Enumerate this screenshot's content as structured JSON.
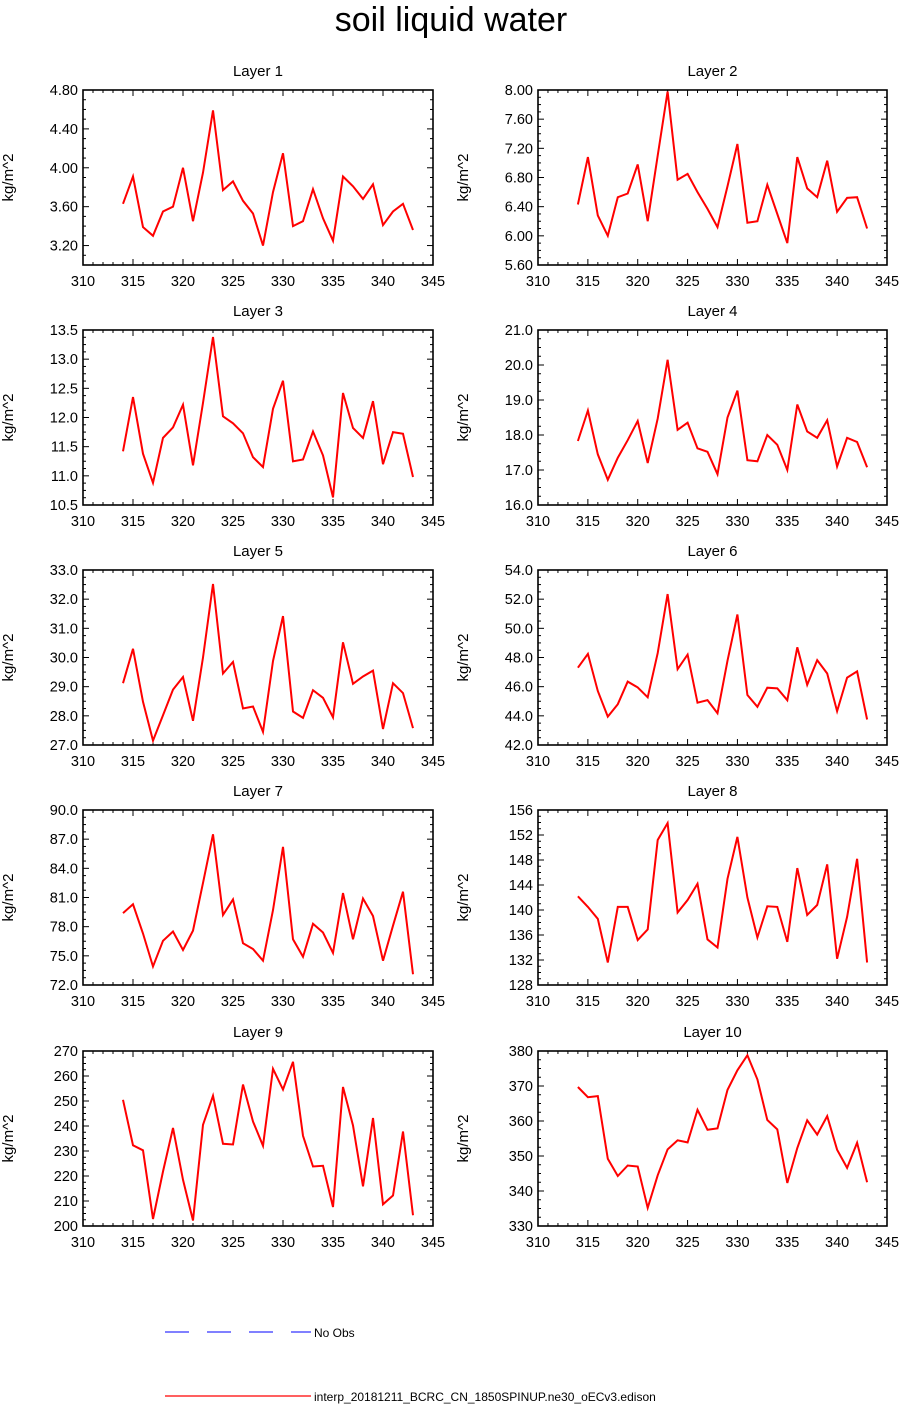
{
  "title": "soil liquid water",
  "legend": [
    {
      "label": "No Obs",
      "color": "#0000ff",
      "style": "dashed"
    },
    {
      "label": "interp_20181211_BCRC_CN_1850SPINUP.ne30_oECv3.edison",
      "color": "#ff0000",
      "style": "solid"
    }
  ],
  "chart_data": [
    {
      "type": "line",
      "title": "Layer 1",
      "ylabel": "kg/m^2",
      "xlim": [
        310,
        345
      ],
      "ylim": [
        3.0,
        4.8
      ],
      "xticks": [
        "310",
        "315",
        "320",
        "325",
        "330",
        "335",
        "340",
        "345"
      ],
      "yticks": [
        "3.20",
        "3.60",
        "4.00",
        "4.40",
        "4.80"
      ],
      "x": [
        314,
        315,
        316,
        317,
        318,
        319,
        320,
        321,
        322,
        323,
        324,
        325,
        326,
        327,
        328,
        329,
        330,
        331,
        332,
        333,
        334,
        335,
        336,
        337,
        338,
        339,
        340,
        341,
        342,
        343
      ],
      "series": [
        {
          "color": "#ff0000",
          "values": [
            3.63,
            3.91,
            3.39,
            3.3,
            3.55,
            3.6,
            4.0,
            3.45,
            3.95,
            4.59,
            3.77,
            3.86,
            3.66,
            3.53,
            3.2,
            3.75,
            4.15,
            3.4,
            3.45,
            3.78,
            3.48,
            3.25,
            3.91,
            3.81,
            3.68,
            3.83,
            3.41,
            3.55,
            3.63,
            3.36
          ]
        }
      ]
    },
    {
      "type": "line",
      "title": "Layer 2",
      "ylabel": "kg/m^2",
      "xlim": [
        310,
        345
      ],
      "ylim": [
        5.6,
        8.0
      ],
      "xticks": [
        "310",
        "315",
        "320",
        "325",
        "330",
        "335",
        "340",
        "345"
      ],
      "yticks": [
        "5.60",
        "6.00",
        "6.40",
        "6.80",
        "7.20",
        "7.60",
        "8.00"
      ],
      "x": [
        314,
        315,
        316,
        317,
        318,
        319,
        320,
        321,
        322,
        323,
        324,
        325,
        326,
        327,
        328,
        329,
        330,
        331,
        332,
        333,
        334,
        335,
        336,
        337,
        338,
        339,
        340,
        341,
        342,
        343
      ],
      "series": [
        {
          "color": "#ff0000",
          "values": [
            6.43,
            7.08,
            6.28,
            6.0,
            6.53,
            6.58,
            6.98,
            6.2,
            7.1,
            7.98,
            6.77,
            6.85,
            6.6,
            6.37,
            6.12,
            6.68,
            7.26,
            6.18,
            6.2,
            6.7,
            6.3,
            5.9,
            7.08,
            6.65,
            6.53,
            7.03,
            6.33,
            6.52,
            6.53,
            6.1
          ]
        }
      ]
    },
    {
      "type": "line",
      "title": "Layer 3",
      "ylabel": "kg/m^2",
      "xlim": [
        310,
        345
      ],
      "ylim": [
        10.5,
        13.5
      ],
      "xticks": [
        "310",
        "315",
        "320",
        "325",
        "330",
        "335",
        "340",
        "345"
      ],
      "yticks": [
        "10.5",
        "11.0",
        "11.5",
        "12.0",
        "12.5",
        "13.0",
        "13.5"
      ],
      "x": [
        314,
        315,
        316,
        317,
        318,
        319,
        320,
        321,
        322,
        323,
        324,
        325,
        326,
        327,
        328,
        329,
        330,
        331,
        332,
        333,
        334,
        335,
        336,
        337,
        338,
        339,
        340,
        341,
        342,
        343
      ],
      "series": [
        {
          "color": "#ff0000",
          "values": [
            11.42,
            12.35,
            11.38,
            10.88,
            11.65,
            11.83,
            12.22,
            11.18,
            12.25,
            13.38,
            12.02,
            11.9,
            11.73,
            11.32,
            11.15,
            12.15,
            12.63,
            11.25,
            11.28,
            11.76,
            11.35,
            10.63,
            12.42,
            11.82,
            11.65,
            12.28,
            11.2,
            11.75,
            11.72,
            10.98
          ]
        }
      ]
    },
    {
      "type": "line",
      "title": "Layer 4",
      "ylabel": "kg/m^2",
      "xlim": [
        310,
        345
      ],
      "ylim": [
        16.0,
        21.0
      ],
      "xticks": [
        "310",
        "315",
        "320",
        "325",
        "330",
        "335",
        "340",
        "345"
      ],
      "yticks": [
        "16.0",
        "17.0",
        "18.0",
        "19.0",
        "20.0",
        "21.0"
      ],
      "x": [
        314,
        315,
        316,
        317,
        318,
        319,
        320,
        321,
        322,
        323,
        324,
        325,
        326,
        327,
        328,
        329,
        330,
        331,
        332,
        333,
        334,
        335,
        336,
        337,
        338,
        339,
        340,
        341,
        342,
        343
      ],
      "series": [
        {
          "color": "#ff0000",
          "values": [
            17.83,
            18.7,
            17.45,
            16.72,
            17.35,
            17.85,
            18.4,
            17.2,
            18.47,
            20.15,
            18.15,
            18.35,
            17.62,
            17.52,
            16.88,
            18.5,
            19.27,
            17.28,
            17.25,
            18.0,
            17.72,
            17.0,
            18.87,
            18.1,
            17.92,
            18.42,
            17.1,
            17.92,
            17.8,
            17.08
          ]
        }
      ]
    },
    {
      "type": "line",
      "title": "Layer 5",
      "ylabel": "kg/m^2",
      "xlim": [
        310,
        345
      ],
      "ylim": [
        27.0,
        33.0
      ],
      "xticks": [
        "310",
        "315",
        "320",
        "325",
        "330",
        "335",
        "340",
        "345"
      ],
      "yticks": [
        "27.0",
        "28.0",
        "29.0",
        "30.0",
        "31.0",
        "32.0",
        "33.0"
      ],
      "x": [
        314,
        315,
        316,
        317,
        318,
        319,
        320,
        321,
        322,
        323,
        324,
        325,
        326,
        327,
        328,
        329,
        330,
        331,
        332,
        333,
        334,
        335,
        336,
        337,
        338,
        339,
        340,
        341,
        342,
        343
      ],
      "series": [
        {
          "color": "#ff0000",
          "values": [
            29.12,
            30.3,
            28.48,
            27.15,
            28.02,
            28.9,
            29.33,
            27.83,
            30.0,
            32.52,
            29.45,
            29.85,
            28.25,
            28.32,
            27.45,
            29.88,
            31.42,
            28.15,
            27.93,
            28.88,
            28.62,
            27.95,
            30.52,
            29.1,
            29.35,
            29.55,
            27.55,
            29.12,
            28.78,
            27.58
          ]
        }
      ]
    },
    {
      "type": "line",
      "title": "Layer 6",
      "ylabel": "kg/m^2",
      "xlim": [
        310,
        345
      ],
      "ylim": [
        42.0,
        54.0
      ],
      "xticks": [
        "310",
        "315",
        "320",
        "325",
        "330",
        "335",
        "340",
        "345"
      ],
      "yticks": [
        "42.0",
        "44.0",
        "46.0",
        "48.0",
        "50.0",
        "52.0",
        "54.0"
      ],
      "x": [
        314,
        315,
        316,
        317,
        318,
        319,
        320,
        321,
        322,
        323,
        324,
        325,
        326,
        327,
        328,
        329,
        330,
        331,
        332,
        333,
        334,
        335,
        336,
        337,
        338,
        339,
        340,
        341,
        342,
        343
      ],
      "series": [
        {
          "color": "#ff0000",
          "values": [
            47.3,
            48.25,
            45.7,
            43.95,
            44.8,
            46.35,
            45.95,
            45.27,
            48.3,
            52.35,
            47.2,
            48.2,
            44.9,
            45.08,
            44.18,
            47.78,
            50.95,
            45.43,
            44.62,
            45.93,
            45.88,
            45.07,
            48.7,
            46.13,
            47.82,
            46.9,
            44.32,
            46.62,
            47.05,
            43.75
          ]
        }
      ]
    },
    {
      "type": "line",
      "title": "Layer 7",
      "ylabel": "kg/m^2",
      "xlim": [
        310,
        345
      ],
      "ylim": [
        72.0,
        90.0
      ],
      "xticks": [
        "310",
        "315",
        "320",
        "325",
        "330",
        "335",
        "340",
        "345"
      ],
      "yticks": [
        "72.0",
        "75.0",
        "78.0",
        "81.0",
        "84.0",
        "87.0",
        "90.0"
      ],
      "x": [
        314,
        315,
        316,
        317,
        318,
        319,
        320,
        321,
        322,
        323,
        324,
        325,
        326,
        327,
        328,
        329,
        330,
        331,
        332,
        333,
        334,
        335,
        336,
        337,
        338,
        339,
        340,
        341,
        342,
        343
      ],
      "series": [
        {
          "color": "#ff0000",
          "values": [
            79.4,
            80.3,
            77.3,
            73.9,
            76.55,
            77.5,
            75.6,
            77.6,
            82.5,
            87.5,
            79.2,
            80.8,
            76.3,
            75.7,
            74.5,
            79.7,
            86.2,
            76.7,
            74.9,
            78.3,
            77.4,
            75.3,
            81.45,
            76.7,
            80.9,
            79.1,
            74.5,
            78.1,
            81.6,
            73.1
          ]
        }
      ]
    },
    {
      "type": "line",
      "title": "Layer 8",
      "ylabel": "kg/m^2",
      "xlim": [
        310,
        345
      ],
      "ylim": [
        128,
        156
      ],
      "xticks": [
        "310",
        "315",
        "320",
        "325",
        "330",
        "335",
        "340",
        "345"
      ],
      "yticks": [
        "128",
        "132",
        "136",
        "140",
        "144",
        "148",
        "152",
        "156"
      ],
      "x": [
        314,
        315,
        316,
        317,
        318,
        319,
        320,
        321,
        322,
        323,
        324,
        325,
        326,
        327,
        328,
        329,
        330,
        331,
        332,
        333,
        334,
        335,
        336,
        337,
        338,
        339,
        340,
        341,
        342,
        343
      ],
      "series": [
        {
          "color": "#ff0000",
          "values": [
            142.2,
            140.5,
            138.6,
            131.6,
            140.5,
            140.5,
            135.2,
            136.9,
            151.2,
            153.9,
            139.6,
            141.6,
            144.2,
            135.3,
            134.0,
            145.0,
            151.7,
            142.0,
            135.6,
            140.6,
            140.5,
            134.9,
            146.7,
            139.2,
            140.8,
            147.3,
            132.2,
            138.9,
            148.2,
            131.6
          ]
        }
      ]
    },
    {
      "type": "line",
      "title": "Layer 9",
      "ylabel": "kg/m^2",
      "xlim": [
        310,
        345
      ],
      "ylim": [
        200,
        270
      ],
      "xticks": [
        "310",
        "315",
        "320",
        "325",
        "330",
        "335",
        "340",
        "345"
      ],
      "yticks": [
        "200",
        "210",
        "220",
        "230",
        "240",
        "250",
        "260",
        "270"
      ],
      "x": [
        314,
        315,
        316,
        317,
        318,
        319,
        320,
        321,
        322,
        323,
        324,
        325,
        326,
        327,
        328,
        329,
        330,
        331,
        332,
        333,
        334,
        335,
        336,
        337,
        338,
        339,
        340,
        341,
        342,
        343
      ],
      "series": [
        {
          "color": "#ff0000",
          "values": [
            250.5,
            232.3,
            230.3,
            202.8,
            221.8,
            239.2,
            218.5,
            202.2,
            240.5,
            252.1,
            232.9,
            232.6,
            256.6,
            241.8,
            232.1,
            262.9,
            254.6,
            265.7,
            236.1,
            223.8,
            224.1,
            207.6,
            255.6,
            240.2,
            215.9,
            243.2,
            208.7,
            212.2,
            237.8,
            204.3
          ]
        }
      ]
    },
    {
      "type": "line",
      "title": "Layer 10",
      "ylabel": "kg/m^2",
      "xlim": [
        310,
        345
      ],
      "ylim": [
        330,
        380
      ],
      "xticks": [
        "310",
        "315",
        "320",
        "325",
        "330",
        "335",
        "340",
        "345"
      ],
      "yticks": [
        "330",
        "340",
        "350",
        "360",
        "370",
        "380"
      ],
      "x": [
        314,
        315,
        316,
        317,
        318,
        319,
        320,
        321,
        322,
        323,
        324,
        325,
        326,
        327,
        328,
        329,
        330,
        331,
        332,
        333,
        334,
        335,
        336,
        337,
        338,
        339,
        340,
        341,
        342,
        343
      ],
      "series": [
        {
          "color": "#ff0000",
          "values": [
            369.7,
            366.8,
            367.1,
            349.2,
            344.3,
            347.3,
            347.0,
            335.2,
            344.5,
            351.9,
            354.5,
            353.9,
            363.2,
            357.5,
            357.9,
            368.9,
            374.5,
            378.8,
            371.9,
            360.3,
            357.6,
            342.3,
            352.3,
            360.2,
            356.1,
            361.4,
            351.8,
            346.6,
            353.8,
            342.5
          ]
        }
      ]
    }
  ]
}
